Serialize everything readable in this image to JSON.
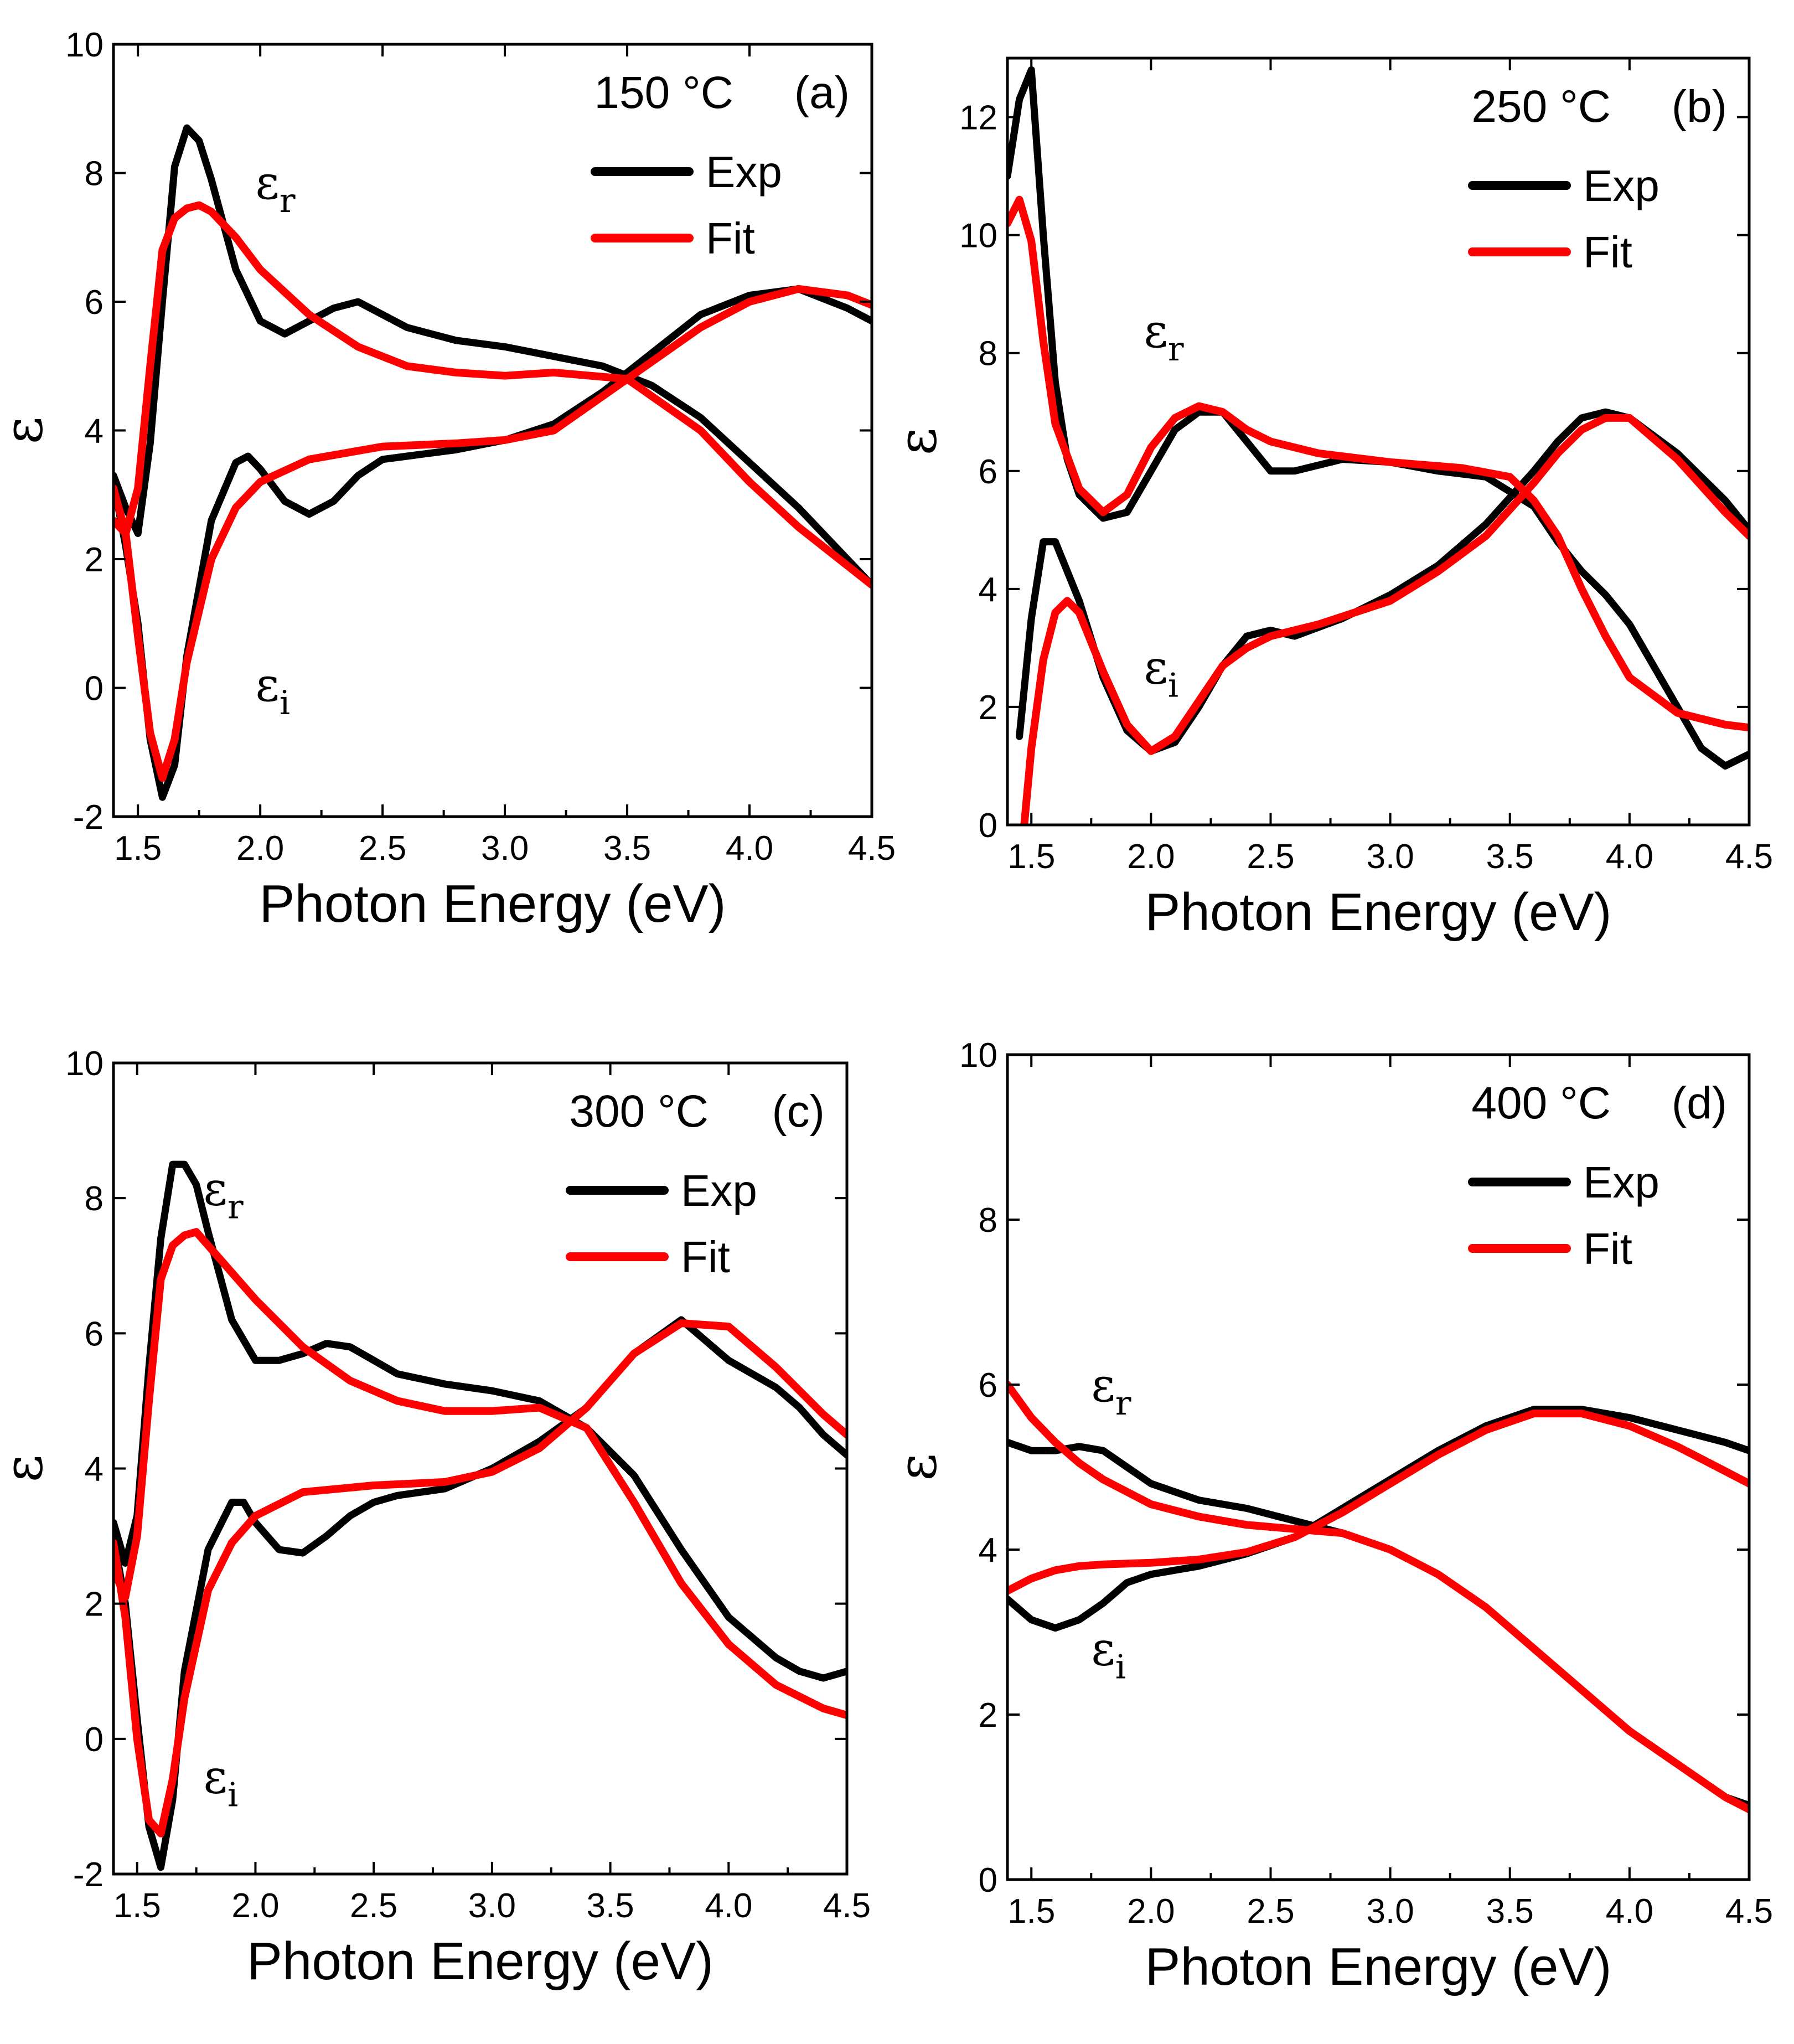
{
  "chart_data": [
    {
      "type": "line",
      "panel": "(a)",
      "annotation": "150 °C",
      "xlabel": "Photon Energy (eV)",
      "ylabel": "ε",
      "xlim": [
        1.4,
        4.5
      ],
      "ylim": [
        -2,
        10
      ],
      "xticks": [
        "1.5",
        "2.0",
        "2.5",
        "3.0",
        "3.5",
        "4.0",
        "4.5"
      ],
      "yticks": [
        "-2",
        "0",
        "2",
        "4",
        "6",
        "8",
        "10"
      ],
      "legend": [
        "Exp",
        "Fit"
      ],
      "legend_position": "top-right",
      "curve_labels": [
        {
          "text": "ε",
          "sub": "r",
          "x": 1.98,
          "y": 7.6
        },
        {
          "text": "ε",
          "sub": "i",
          "x": 1.98,
          "y": -0.2
        }
      ],
      "series": [
        {
          "name": "Exp ε_r",
          "legend": "Exp",
          "x": [
            1.4,
            1.45,
            1.5,
            1.55,
            1.6,
            1.65,
            1.7,
            1.75,
            1.8,
            1.9,
            2.0,
            2.1,
            2.2,
            2.3,
            2.4,
            2.5,
            2.6,
            2.8,
            3.0,
            3.2,
            3.4,
            3.6,
            3.8,
            4.0,
            4.2,
            4.4,
            4.5
          ],
          "y": [
            3.3,
            2.8,
            2.4,
            3.8,
            6.0,
            8.1,
            8.7,
            8.5,
            7.9,
            6.5,
            5.7,
            5.5,
            5.7,
            5.9,
            6.0,
            5.8,
            5.6,
            5.4,
            5.3,
            5.15,
            5.0,
            4.7,
            4.2,
            3.5,
            2.8,
            2.0,
            1.6
          ]
        },
        {
          "name": "Exp ε_i",
          "legend": "Exp",
          "x": [
            1.4,
            1.45,
            1.5,
            1.55,
            1.6,
            1.65,
            1.7,
            1.8,
            1.9,
            1.95,
            2.0,
            2.1,
            2.2,
            2.3,
            2.4,
            2.5,
            2.6,
            2.8,
            3.0,
            3.2,
            3.4,
            3.6,
            3.8,
            4.0,
            4.2,
            4.4,
            4.5
          ],
          "y": [
            3.2,
            2.2,
            1.0,
            -0.8,
            -1.7,
            -1.2,
            0.5,
            2.6,
            3.5,
            3.6,
            3.4,
            2.9,
            2.7,
            2.9,
            3.3,
            3.55,
            3.6,
            3.7,
            3.85,
            4.1,
            4.6,
            5.2,
            5.8,
            6.1,
            6.2,
            5.9,
            5.7
          ]
        },
        {
          "name": "Fit ε_r",
          "legend": "Fit",
          "x": [
            1.4,
            1.45,
            1.5,
            1.55,
            1.6,
            1.65,
            1.7,
            1.75,
            1.8,
            1.9,
            2.0,
            2.2,
            2.4,
            2.6,
            2.8,
            3.0,
            3.2,
            3.5,
            3.8,
            4.0,
            4.2,
            4.5
          ],
          "y": [
            2.6,
            2.4,
            3.1,
            5.0,
            6.8,
            7.3,
            7.45,
            7.5,
            7.4,
            7.0,
            6.5,
            5.8,
            5.3,
            5.0,
            4.9,
            4.85,
            4.9,
            4.8,
            4.0,
            3.2,
            2.5,
            1.6
          ]
        },
        {
          "name": "Fit ε_i",
          "legend": "Fit",
          "x": [
            1.4,
            1.45,
            1.5,
            1.55,
            1.6,
            1.65,
            1.7,
            1.8,
            1.9,
            2.0,
            2.2,
            2.5,
            2.8,
            3.0,
            3.2,
            3.5,
            3.8,
            4.0,
            4.2,
            4.4,
            4.5
          ],
          "y": [
            3.1,
            2.4,
            0.8,
            -0.7,
            -1.4,
            -0.8,
            0.4,
            2.0,
            2.8,
            3.2,
            3.55,
            3.75,
            3.8,
            3.85,
            4.0,
            4.8,
            5.6,
            6.0,
            6.2,
            6.1,
            5.95
          ]
        }
      ]
    },
    {
      "type": "line",
      "panel": "(b)",
      "annotation": "250 °C",
      "xlabel": "Photon Energy (eV)",
      "ylabel": "ε",
      "xlim": [
        1.4,
        4.5
      ],
      "ylim": [
        0,
        13
      ],
      "xticks": [
        "1.5",
        "2.0",
        "2.5",
        "3.0",
        "3.5",
        "4.0",
        "4.5"
      ],
      "yticks": [
        "0",
        "2",
        "4",
        "6",
        "8",
        "10",
        "12"
      ],
      "legend": [
        "Exp",
        "Fit"
      ],
      "legend_position": "top-right",
      "curve_labels": [
        {
          "text": "ε",
          "sub": "r",
          "x": 1.97,
          "y": 8.1
        },
        {
          "text": "ε",
          "sub": "i",
          "x": 1.97,
          "y": 2.4
        }
      ],
      "series": [
        {
          "name": "Exp ε_r",
          "legend": "Exp",
          "x": [
            1.4,
            1.45,
            1.5,
            1.55,
            1.6,
            1.65,
            1.7,
            1.8,
            1.9,
            2.0,
            2.1,
            2.2,
            2.3,
            2.4,
            2.5,
            2.6,
            2.8,
            3.0,
            3.2,
            3.4,
            3.6,
            3.7,
            3.8,
            3.9,
            4.0,
            4.2,
            4.3,
            4.4,
            4.5
          ],
          "y": [
            11.0,
            12.3,
            12.8,
            10.0,
            7.5,
            6.2,
            5.6,
            5.2,
            5.3,
            6.0,
            6.7,
            7.0,
            7.0,
            6.5,
            6.0,
            6.0,
            6.2,
            6.15,
            6.0,
            5.9,
            5.4,
            4.8,
            4.3,
            3.9,
            3.4,
            2.0,
            1.3,
            1.0,
            1.2
          ]
        },
        {
          "name": "Exp ε_i",
          "legend": "Exp",
          "x": [
            1.45,
            1.5,
            1.55,
            1.6,
            1.7,
            1.8,
            1.9,
            2.0,
            2.1,
            2.2,
            2.3,
            2.4,
            2.5,
            2.6,
            2.8,
            3.0,
            3.2,
            3.4,
            3.6,
            3.7,
            3.8,
            3.9,
            4.0,
            4.1,
            4.2,
            4.3,
            4.4,
            4.5
          ],
          "y": [
            1.5,
            3.5,
            4.8,
            4.8,
            3.8,
            2.5,
            1.6,
            1.25,
            1.4,
            2.0,
            2.7,
            3.2,
            3.3,
            3.2,
            3.5,
            3.9,
            4.4,
            5.1,
            6.0,
            6.5,
            6.9,
            7.0,
            6.9,
            6.6,
            6.3,
            5.9,
            5.5,
            5.0
          ]
        },
        {
          "name": "Fit ε_r",
          "legend": "Fit",
          "x": [
            1.4,
            1.45,
            1.5,
            1.55,
            1.6,
            1.7,
            1.8,
            1.9,
            2.0,
            2.1,
            2.2,
            2.3,
            2.4,
            2.5,
            2.7,
            3.0,
            3.3,
            3.5,
            3.6,
            3.7,
            3.8,
            3.9,
            4.0,
            4.2,
            4.4,
            4.5
          ],
          "y": [
            10.2,
            10.6,
            9.9,
            8.2,
            6.8,
            5.7,
            5.3,
            5.6,
            6.4,
            6.9,
            7.1,
            7.0,
            6.7,
            6.5,
            6.3,
            6.15,
            6.05,
            5.9,
            5.5,
            4.9,
            4.0,
            3.2,
            2.5,
            1.9,
            1.7,
            1.65
          ]
        },
        {
          "name": "Fit ε_i",
          "legend": "Fit",
          "x": [
            1.47,
            1.5,
            1.55,
            1.6,
            1.65,
            1.7,
            1.8,
            1.9,
            2.0,
            2.1,
            2.2,
            2.3,
            2.4,
            2.5,
            2.7,
            3.0,
            3.2,
            3.4,
            3.6,
            3.7,
            3.8,
            3.9,
            4.0,
            4.2,
            4.4,
            4.5
          ],
          "y": [
            0.0,
            1.3,
            2.8,
            3.6,
            3.8,
            3.6,
            2.6,
            1.7,
            1.25,
            1.5,
            2.1,
            2.7,
            3.0,
            3.2,
            3.4,
            3.8,
            4.3,
            4.9,
            5.8,
            6.3,
            6.7,
            6.9,
            6.9,
            6.2,
            5.3,
            4.9
          ]
        }
      ]
    },
    {
      "type": "line",
      "panel": "(c)",
      "annotation": "300 °C",
      "xlabel": "Photon Energy (eV)",
      "ylabel": "ε",
      "xlim": [
        1.4,
        4.5
      ],
      "ylim": [
        -2,
        10
      ],
      "xticks": [
        "1.5",
        "2.0",
        "2.5",
        "3.0",
        "3.5",
        "4.0",
        "4.5"
      ],
      "yticks": [
        "-2",
        "0",
        "2",
        "4",
        "6",
        "8",
        "10"
      ],
      "legend": [
        "Exp",
        "Fit"
      ],
      "legend_position": "top-right",
      "curve_labels": [
        {
          "text": "ε",
          "sub": "r",
          "x": 1.78,
          "y": 7.9
        },
        {
          "text": "ε",
          "sub": "i",
          "x": 1.78,
          "y": -0.8
        }
      ],
      "series": [
        {
          "name": "Exp ε_r",
          "legend": "Exp",
          "x": [
            1.4,
            1.45,
            1.5,
            1.55,
            1.6,
            1.65,
            1.7,
            1.75,
            1.8,
            1.9,
            2.0,
            2.1,
            2.2,
            2.3,
            2.4,
            2.5,
            2.6,
            2.8,
            3.0,
            3.2,
            3.4,
            3.6,
            3.8,
            4.0,
            4.2,
            4.3,
            4.4,
            4.5
          ],
          "y": [
            3.2,
            2.6,
            3.3,
            5.5,
            7.4,
            8.5,
            8.5,
            8.2,
            7.5,
            6.2,
            5.6,
            5.6,
            5.7,
            5.85,
            5.8,
            5.6,
            5.4,
            5.25,
            5.15,
            5.0,
            4.6,
            3.9,
            2.8,
            1.8,
            1.2,
            1.0,
            0.9,
            1.0
          ]
        },
        {
          "name": "Exp ε_i",
          "legend": "Exp",
          "x": [
            1.4,
            1.45,
            1.5,
            1.55,
            1.6,
            1.65,
            1.7,
            1.8,
            1.9,
            1.95,
            2.0,
            2.1,
            2.2,
            2.3,
            2.4,
            2.5,
            2.6,
            2.8,
            3.0,
            3.2,
            3.4,
            3.6,
            3.8,
            4.0,
            4.2,
            4.3,
            4.4,
            4.5
          ],
          "y": [
            3.0,
            2.0,
            0.3,
            -1.3,
            -1.9,
            -0.9,
            1.0,
            2.8,
            3.5,
            3.5,
            3.2,
            2.8,
            2.75,
            3.0,
            3.3,
            3.5,
            3.6,
            3.7,
            4.0,
            4.4,
            4.9,
            5.7,
            6.2,
            5.6,
            5.2,
            4.9,
            4.5,
            4.2
          ]
        },
        {
          "name": "Fit ε_r",
          "legend": "Fit",
          "x": [
            1.4,
            1.45,
            1.5,
            1.55,
            1.6,
            1.65,
            1.7,
            1.75,
            1.8,
            1.9,
            2.0,
            2.2,
            2.4,
            2.6,
            2.8,
            3.0,
            3.2,
            3.4,
            3.6,
            3.8,
            4.0,
            4.2,
            4.4,
            4.5
          ],
          "y": [
            2.5,
            2.1,
            3.0,
            5.0,
            6.8,
            7.3,
            7.45,
            7.5,
            7.3,
            6.9,
            6.5,
            5.8,
            5.3,
            5.0,
            4.85,
            4.85,
            4.9,
            4.6,
            3.5,
            2.3,
            1.4,
            0.8,
            0.45,
            0.35
          ]
        },
        {
          "name": "Fit ε_i",
          "legend": "Fit",
          "x": [
            1.4,
            1.45,
            1.5,
            1.55,
            1.6,
            1.65,
            1.7,
            1.8,
            1.9,
            2.0,
            2.2,
            2.5,
            2.8,
            3.0,
            3.2,
            3.4,
            3.6,
            3.8,
            4.0,
            4.2,
            4.4,
            4.5
          ],
          "y": [
            2.9,
            1.8,
            0.0,
            -1.2,
            -1.4,
            -0.6,
            0.6,
            2.2,
            2.9,
            3.3,
            3.65,
            3.75,
            3.8,
            3.95,
            4.3,
            4.9,
            5.7,
            6.15,
            6.1,
            5.5,
            4.8,
            4.5
          ]
        }
      ]
    },
    {
      "type": "line",
      "panel": "(d)",
      "annotation": "400 °C",
      "xlabel": "Photon Energy (eV)",
      "ylabel": "ε",
      "xlim": [
        1.4,
        4.5
      ],
      "ylim": [
        0,
        10
      ],
      "xticks": [
        "1.5",
        "2.0",
        "2.5",
        "3.0",
        "3.5",
        "4.0",
        "4.5"
      ],
      "yticks": [
        "0",
        "2",
        "4",
        "6",
        "8",
        "10"
      ],
      "legend": [
        "Exp",
        "Fit"
      ],
      "legend_position": "top-right",
      "curve_labels": [
        {
          "text": "ε",
          "sub": "r",
          "x": 1.75,
          "y": 5.8
        },
        {
          "text": "ε",
          "sub": "i",
          "x": 1.75,
          "y": 2.6
        }
      ],
      "series": [
        {
          "name": "Exp ε_r",
          "legend": "Exp",
          "x": [
            1.4,
            1.5,
            1.6,
            1.7,
            1.8,
            1.9,
            2.0,
            2.2,
            2.4,
            2.6,
            2.8,
            3.0,
            3.2,
            3.4,
            3.6,
            3.8,
            4.0,
            4.2,
            4.4,
            4.5
          ],
          "y": [
            5.3,
            5.2,
            5.2,
            5.25,
            5.2,
            5.0,
            4.8,
            4.6,
            4.5,
            4.35,
            4.2,
            4.0,
            3.7,
            3.3,
            2.8,
            2.3,
            1.8,
            1.4,
            1.0,
            0.9
          ]
        },
        {
          "name": "Exp ε_i",
          "legend": "Exp",
          "x": [
            1.4,
            1.5,
            1.6,
            1.7,
            1.8,
            1.9,
            2.0,
            2.2,
            2.4,
            2.6,
            2.8,
            3.0,
            3.2,
            3.4,
            3.6,
            3.8,
            4.0,
            4.2,
            4.4,
            4.5
          ],
          "y": [
            3.4,
            3.15,
            3.05,
            3.15,
            3.35,
            3.6,
            3.7,
            3.8,
            3.95,
            4.15,
            4.5,
            4.85,
            5.2,
            5.5,
            5.7,
            5.7,
            5.6,
            5.45,
            5.3,
            5.2
          ]
        },
        {
          "name": "Fit ε_r",
          "legend": "Fit",
          "x": [
            1.4,
            1.5,
            1.6,
            1.7,
            1.8,
            1.9,
            2.0,
            2.2,
            2.4,
            2.6,
            2.8,
            3.0,
            3.2,
            3.4,
            3.6,
            3.8,
            4.0,
            4.2,
            4.4,
            4.5
          ],
          "y": [
            6.0,
            5.6,
            5.3,
            5.05,
            4.85,
            4.7,
            4.55,
            4.4,
            4.3,
            4.25,
            4.2,
            4.0,
            3.7,
            3.3,
            2.8,
            2.3,
            1.8,
            1.4,
            1.0,
            0.85
          ]
        },
        {
          "name": "Fit ε_i",
          "legend": "Fit",
          "x": [
            1.4,
            1.5,
            1.6,
            1.7,
            1.8,
            1.9,
            2.0,
            2.2,
            2.4,
            2.6,
            2.8,
            3.0,
            3.2,
            3.4,
            3.6,
            3.8,
            4.0,
            4.2,
            4.4,
            4.5
          ],
          "y": [
            3.5,
            3.65,
            3.75,
            3.8,
            3.82,
            3.83,
            3.84,
            3.88,
            3.97,
            4.15,
            4.45,
            4.8,
            5.15,
            5.45,
            5.65,
            5.65,
            5.5,
            5.25,
            4.95,
            4.8
          ]
        }
      ]
    }
  ],
  "colors": {
    "exp": "#000000",
    "fit": "#ff0000"
  }
}
